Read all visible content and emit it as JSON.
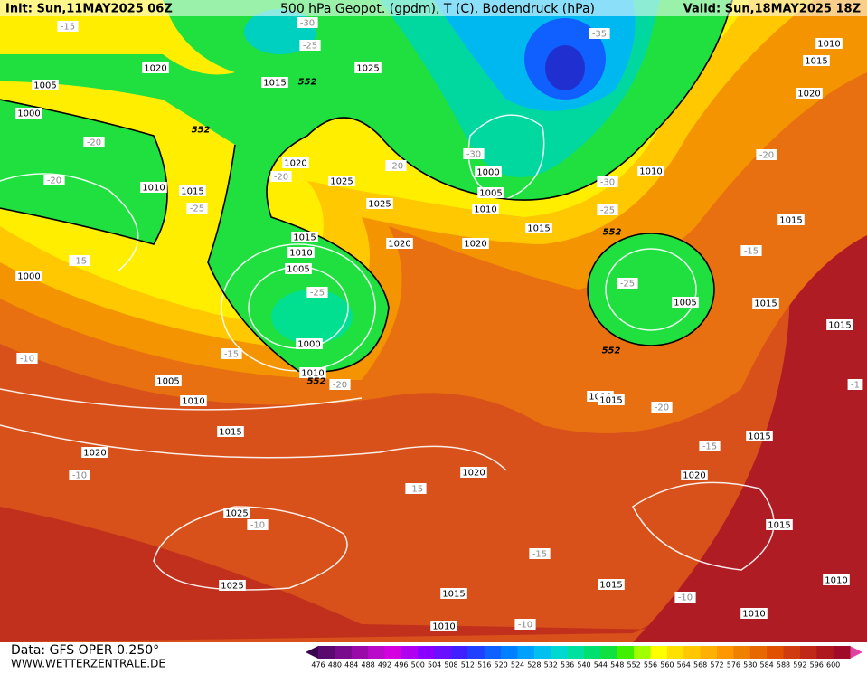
{
  "header": {
    "init": "Init: Sun,11MAY2025 06Z",
    "title": "500 hPa Geopot. (gpdm), T (C), Bodendruck (hPa)",
    "valid": "Valid: Sun,18MAY2025 18Z"
  },
  "footer": {
    "data": "Data: GFS OPER 0.250°",
    "site": "WWW.WETTERZENTRALE.DE"
  },
  "scale": {
    "labels": [
      476,
      480,
      484,
      488,
      492,
      496,
      500,
      504,
      508,
      512,
      516,
      520,
      524,
      528,
      532,
      536,
      540,
      544,
      548,
      552,
      556,
      560,
      564,
      568,
      572,
      576,
      580,
      584,
      588,
      592,
      596,
      600
    ],
    "colors": [
      "#5a0a6e",
      "#7a0a8c",
      "#9a0aa8",
      "#b80ac8",
      "#d400e0",
      "#b000f0",
      "#8a00ff",
      "#6a10ff",
      "#4020ff",
      "#2040ff",
      "#1060ff",
      "#0080ff",
      "#00a0ff",
      "#00c0f0",
      "#00d8d0",
      "#00e0a0",
      "#00e070",
      "#10e040",
      "#40f000",
      "#a0ff00",
      "#ffff00",
      "#ffe000",
      "#ffc800",
      "#ffb000",
      "#ff9800",
      "#f08000",
      "#e86800",
      "#e05000",
      "#d03c10",
      "#c02818",
      "#b01820",
      "#a00c28"
    ]
  },
  "map_labels": [
    "-15",
    "-30",
    "-25",
    "1020",
    "1005",
    "1015",
    "552",
    "1025",
    "-35",
    "1010",
    "1015",
    "1020",
    "1000",
    "552",
    "-20",
    "1020",
    "-20",
    "-30",
    "1000",
    "1010",
    "-20",
    "-20",
    "1010",
    "1015",
    "-20",
    "1025",
    "1005",
    "-30",
    "-25",
    "1025",
    "1010",
    "1015",
    "-25",
    "1015",
    "552",
    "1015",
    "1020",
    "1020",
    "-15",
    "1010",
    "-15",
    "1000",
    "1005",
    "-25",
    "-25",
    "1005",
    "1015",
    "1015",
    "1000",
    "552",
    "-15",
    "-10",
    "1010",
    "552",
    "-20",
    "1005",
    "1010",
    "1015",
    "-20",
    "-1",
    "1010",
    "1015",
    "1015",
    "-15",
    "1020",
    "-10",
    "1020",
    "1020",
    "-15",
    "1025",
    "-10",
    "1015",
    "-15",
    "1025",
    "1015",
    "1010",
    "1015",
    "-10",
    "1010",
    "1010",
    "-10"
  ]
}
